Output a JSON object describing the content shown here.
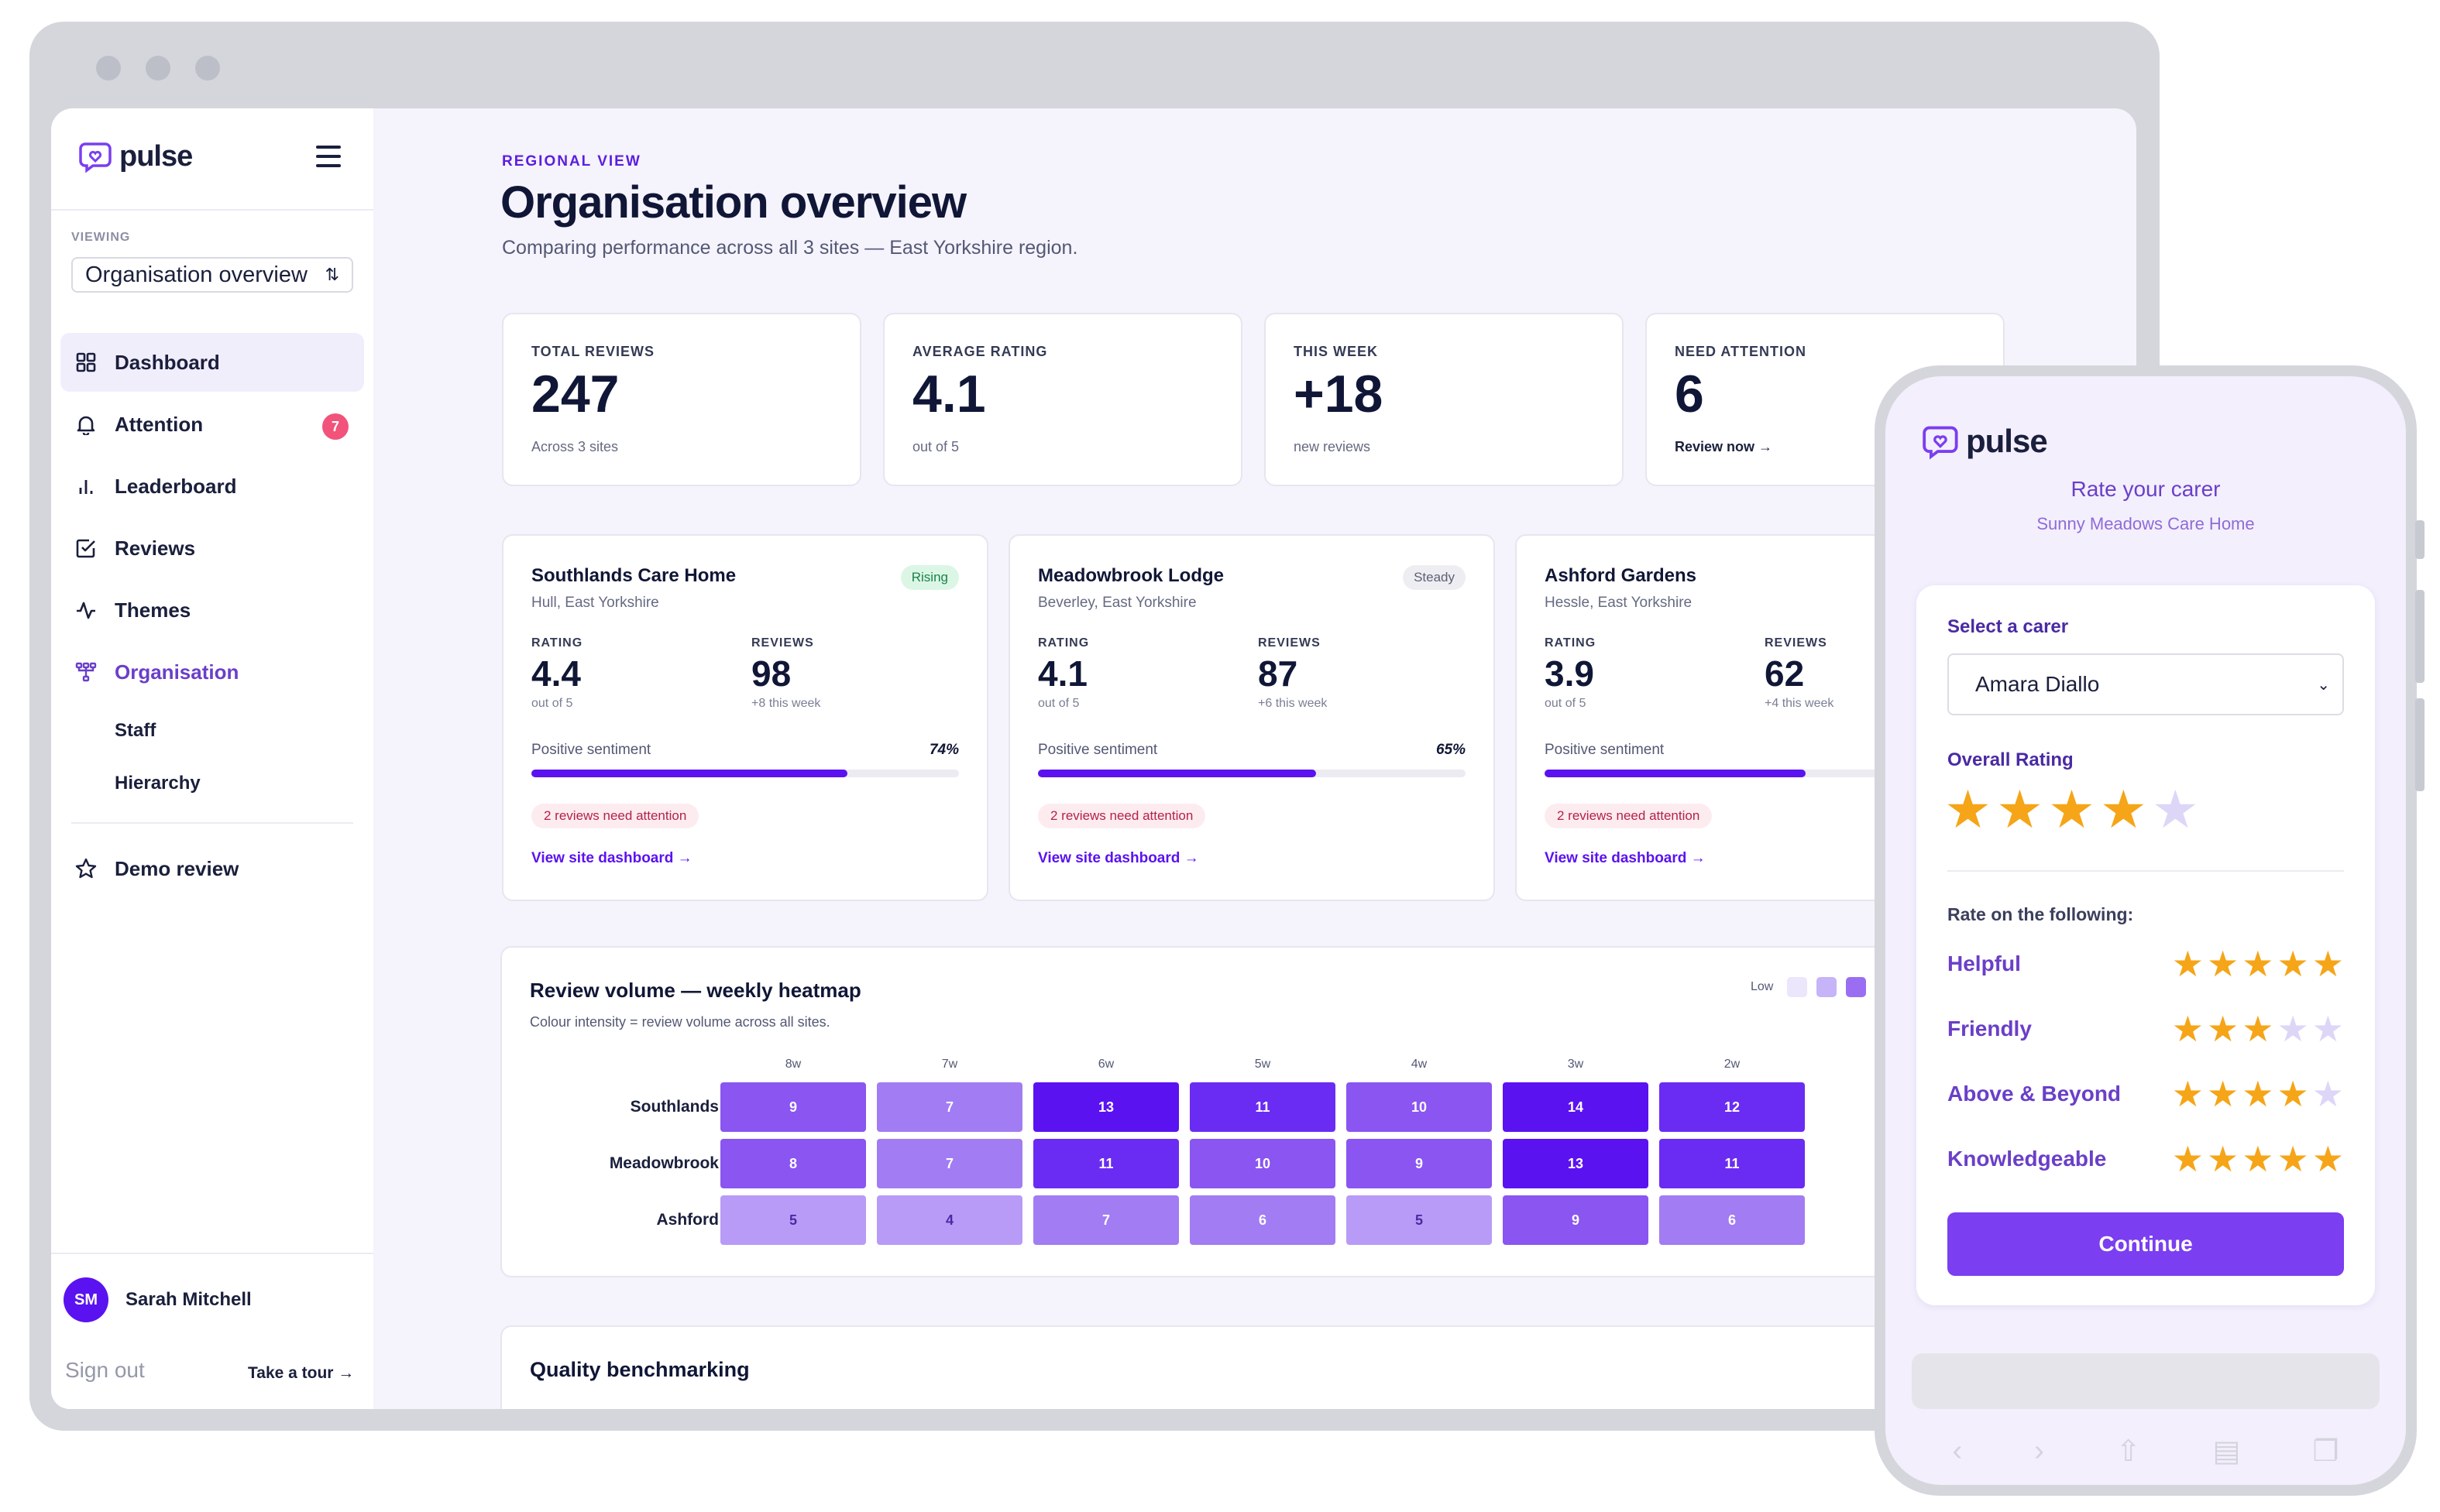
{
  "app": {
    "name": "pulse"
  },
  "sidebar": {
    "viewing_label": "VIEWING",
    "viewing_value": "Organisation overview",
    "nav": [
      {
        "label": "Dashboard",
        "icon": "grid-icon"
      },
      {
        "label": "Attention",
        "icon": "bell-icon",
        "badge": "7"
      },
      {
        "label": "Leaderboard",
        "icon": "bar-chart-icon"
      },
      {
        "label": "Reviews",
        "icon": "checkbox-icon"
      },
      {
        "label": "Themes",
        "icon": "activity-icon"
      },
      {
        "label": "Organisation",
        "icon": "hierarchy-icon"
      }
    ],
    "sub_items": [
      "Staff",
      "Hierarchy"
    ],
    "demo": {
      "label": "Demo review",
      "icon": "star-icon"
    },
    "user": {
      "initials": "SM",
      "name": "Sarah Mitchell"
    },
    "sign_out": "Sign out",
    "tour": "Take a tour →"
  },
  "main": {
    "eyebrow": "REGIONAL VIEW",
    "title": "Organisation overview",
    "subtitle": "Comparing performance across all 3 sites — East Yorkshire region.",
    "stats": [
      {
        "label": "TOTAL REVIEWS",
        "value": "247",
        "note": "Across 3 sites"
      },
      {
        "label": "AVERAGE RATING",
        "value": "4.1",
        "note": "out of 5"
      },
      {
        "label": "THIS WEEK",
        "value": "+18",
        "note": "new reviews"
      },
      {
        "label": "NEED ATTENTION",
        "value": "6",
        "note": "Review now →"
      }
    ],
    "sites": [
      {
        "name": "Southlands Care Home",
        "location": "Hull, East Yorkshire",
        "trend": "Rising",
        "rating_label": "RATING",
        "rating": "4.4",
        "rating_note": "out of 5",
        "reviews_label": "REVIEWS",
        "reviews": "98",
        "reviews_note": "+8 this week",
        "sentiment_label": "Positive sentiment",
        "sentiment": "74%",
        "sentiment_value": 74,
        "attention": "2 reviews need attention",
        "link": "View site dashboard →"
      },
      {
        "name": "Meadowbrook Lodge",
        "location": "Beverley, East Yorkshire",
        "trend": "Steady",
        "rating_label": "RATING",
        "rating": "4.1",
        "rating_note": "out of 5",
        "reviews_label": "REVIEWS",
        "reviews": "87",
        "reviews_note": "+6 this week",
        "sentiment_label": "Positive sentiment",
        "sentiment": "65%",
        "sentiment_value": 65,
        "attention": "2 reviews need attention",
        "link": "View site dashboard →"
      },
      {
        "name": "Ashford Gardens",
        "location": "Hessle, East Yorkshire",
        "trend": "",
        "rating_label": "RATING",
        "rating": "3.9",
        "rating_note": "out of 5",
        "reviews_label": "REVIEWS",
        "reviews": "62",
        "reviews_note": "+4 this week",
        "sentiment_label": "Positive sentiment",
        "sentiment": "",
        "sentiment_value": 61,
        "attention": "2 reviews need attention",
        "link": "View site dashboard →"
      }
    ],
    "heatmap": {
      "title": "Review volume — weekly heatmap",
      "subtitle": "Colour intensity = review volume across all sites.",
      "legend_low": "Low"
    },
    "benchmark_title": "Quality benchmarking"
  },
  "chart_data": {
    "type": "heatmap",
    "title": "Review volume — weekly heatmap",
    "columns": [
      "8w",
      "7w",
      "6w",
      "5w",
      "4w",
      "3w",
      "2w"
    ],
    "rows": [
      "Southlands",
      "Meadowbrook",
      "Ashford"
    ],
    "values": [
      [
        9,
        7,
        13,
        11,
        10,
        14,
        12
      ],
      [
        8,
        7,
        11,
        10,
        9,
        13,
        11
      ],
      [
        5,
        4,
        7,
        6,
        5,
        9,
        6
      ]
    ],
    "colors": [
      "#ebe6fb",
      "#d7cdf9",
      "#b89bf6",
      "#a27cf2",
      "#8a55f0",
      "#6a2cf2",
      "#5b12f0"
    ]
  },
  "phone": {
    "title": "Rate your carer",
    "subtitle": "Sunny Meadows Care Home",
    "select_label": "Select a carer",
    "selected_carer": "Amara Diallo",
    "overall_label": "Overall Rating",
    "overall_rating": 4,
    "rate_label": "Rate on the following:",
    "criteria": [
      {
        "name": "Helpful",
        "stars": 5
      },
      {
        "name": "Friendly",
        "stars": 3
      },
      {
        "name": "Above & Beyond",
        "stars": 4
      },
      {
        "name": "Knowledgeable",
        "stars": 5
      }
    ],
    "continue_label": "Continue"
  },
  "colors": {
    "accent": "#5b12f0",
    "star": "#f5a517",
    "badge": "#f2537a"
  }
}
